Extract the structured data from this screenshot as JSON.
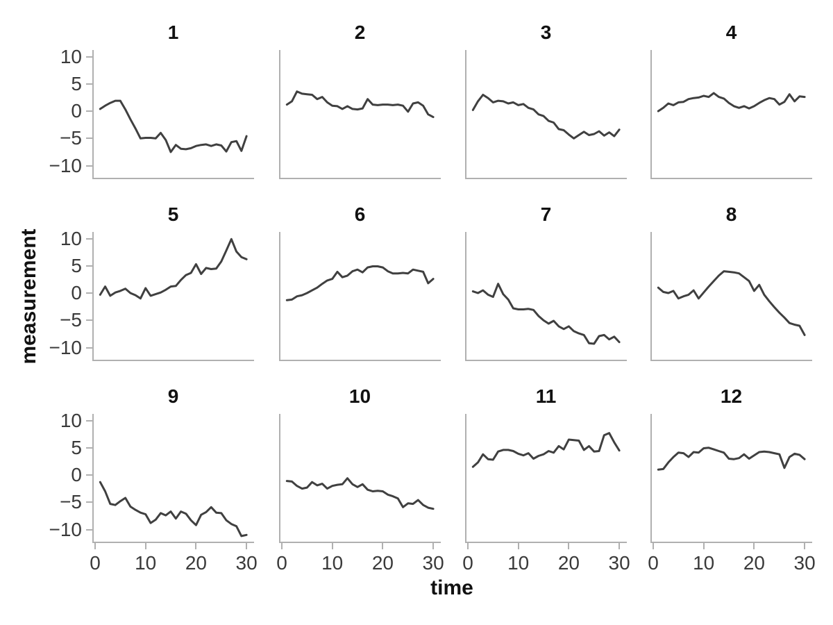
{
  "chart_data": {
    "type": "line",
    "layout": "facet-grid 3 rows x 4 cols, shared axes",
    "xlabel": "time",
    "ylabel": "measurement",
    "xlim": [
      -0.6,
      31.5
    ],
    "ylim": [
      -12.4,
      11.3
    ],
    "grid": "off",
    "legend": "none",
    "line_color": "#404040",
    "axis_color": "#b0b0b0",
    "x_ticks": [
      {
        "value": 0,
        "label": "0"
      },
      {
        "value": 10,
        "label": "10"
      },
      {
        "value": 20,
        "label": "20"
      },
      {
        "value": 30,
        "label": "30"
      }
    ],
    "y_ticks": [
      {
        "value": 10,
        "label": "10"
      },
      {
        "value": 5,
        "label": "5"
      },
      {
        "value": 0,
        "label": "0"
      },
      {
        "value": -5,
        "label": "−5"
      },
      {
        "value": -10,
        "label": "−10"
      }
    ],
    "x": [
      1,
      2,
      3,
      4,
      5,
      6,
      7,
      8,
      9,
      10,
      11,
      12,
      13,
      14,
      15,
      16,
      17,
      18,
      19,
      20,
      21,
      22,
      23,
      24,
      25,
      26,
      27,
      28,
      29,
      30
    ],
    "panels": [
      {
        "title": "1",
        "values": [
          0.4,
          1.0,
          1.5,
          1.9,
          1.9,
          0.3,
          -1.5,
          -3.2,
          -5.0,
          -4.9,
          -4.9,
          -5.0,
          -4.0,
          -5.3,
          -7.5,
          -6.2,
          -6.9,
          -7.0,
          -6.8,
          -6.4,
          -6.2,
          -6.1,
          -6.4,
          -6.1,
          -6.3,
          -7.4,
          -5.7,
          -5.5,
          -7.3,
          -4.6
        ]
      },
      {
        "title": "2",
        "values": [
          1.2,
          1.8,
          3.6,
          3.2,
          3.1,
          3.0,
          2.2,
          2.6,
          1.6,
          1.0,
          0.9,
          0.4,
          0.9,
          0.4,
          0.3,
          0.5,
          2.2,
          1.2,
          1.1,
          1.2,
          1.2,
          1.1,
          1.2,
          1.0,
          -0.1,
          1.4,
          1.6,
          1.0,
          -0.6,
          -1.1
        ]
      },
      {
        "title": "3",
        "values": [
          0.2,
          1.8,
          3.0,
          2.4,
          1.6,
          1.9,
          1.8,
          1.4,
          1.6,
          1.1,
          1.3,
          0.6,
          0.3,
          -0.6,
          -0.9,
          -1.8,
          -2.1,
          -3.3,
          -3.5,
          -4.3,
          -5.0,
          -4.4,
          -3.8,
          -4.4,
          -4.2,
          -3.7,
          -4.5,
          -3.9,
          -4.6,
          -3.4
        ]
      },
      {
        "title": "4",
        "values": [
          0.0,
          0.6,
          1.4,
          1.1,
          1.6,
          1.7,
          2.2,
          2.4,
          2.5,
          2.8,
          2.6,
          3.3,
          2.6,
          2.3,
          1.5,
          0.9,
          0.6,
          0.9,
          0.5,
          0.9,
          1.5,
          2.0,
          2.4,
          2.2,
          1.2,
          1.7,
          3.1,
          1.8,
          2.7,
          2.6
        ]
      },
      {
        "title": "5",
        "values": [
          -0.3,
          1.2,
          -0.5,
          0.1,
          0.4,
          0.8,
          0.0,
          -0.4,
          -1.0,
          0.9,
          -0.5,
          -0.2,
          0.1,
          0.6,
          1.2,
          1.3,
          2.4,
          3.3,
          3.7,
          5.3,
          3.5,
          4.6,
          4.4,
          4.5,
          5.8,
          7.8,
          9.9,
          7.6,
          6.6,
          6.2
        ]
      },
      {
        "title": "6",
        "values": [
          -1.3,
          -1.2,
          -0.6,
          -0.4,
          0.0,
          0.5,
          1.0,
          1.7,
          2.3,
          2.6,
          3.9,
          2.9,
          3.2,
          4.0,
          4.3,
          3.8,
          4.7,
          4.9,
          4.9,
          4.7,
          4.0,
          3.6,
          3.6,
          3.7,
          3.6,
          4.3,
          4.1,
          3.9,
          1.8,
          2.6
        ]
      },
      {
        "title": "7",
        "values": [
          0.3,
          0.0,
          0.5,
          -0.3,
          -0.7,
          1.7,
          -0.2,
          -1.2,
          -2.8,
          -3.0,
          -3.0,
          -2.9,
          -3.1,
          -4.2,
          -5.0,
          -5.6,
          -5.1,
          -6.1,
          -6.6,
          -6.1,
          -7.0,
          -7.4,
          -7.7,
          -9.2,
          -9.3,
          -7.9,
          -7.7,
          -8.5,
          -8.0,
          -9.0
        ]
      },
      {
        "title": "8",
        "values": [
          1.0,
          0.2,
          0.0,
          0.4,
          -1.0,
          -0.6,
          -0.3,
          0.5,
          -1.0,
          0.1,
          1.2,
          2.2,
          3.2,
          4.0,
          3.9,
          3.8,
          3.6,
          2.9,
          2.2,
          0.4,
          1.5,
          -0.3,
          -1.5,
          -2.6,
          -3.6,
          -4.5,
          -5.5,
          -5.8,
          -6.0,
          -7.7
        ]
      },
      {
        "title": "9",
        "values": [
          -1.3,
          -3.0,
          -5.3,
          -5.5,
          -4.8,
          -4.2,
          -5.8,
          -6.4,
          -6.9,
          -7.2,
          -8.8,
          -8.2,
          -7.0,
          -7.4,
          -6.7,
          -8.0,
          -6.7,
          -7.1,
          -8.3,
          -9.2,
          -7.3,
          -6.8,
          -5.9,
          -6.9,
          -7.0,
          -8.3,
          -9.0,
          -9.4,
          -11.2,
          -11.0
        ]
      },
      {
        "title": "10",
        "values": [
          -1.1,
          -1.2,
          -2.0,
          -2.5,
          -2.3,
          -1.3,
          -1.9,
          -1.6,
          -2.5,
          -2.0,
          -1.8,
          -1.7,
          -0.6,
          -1.7,
          -2.2,
          -1.7,
          -2.7,
          -3.0,
          -2.9,
          -3.0,
          -3.6,
          -3.9,
          -4.3,
          -5.9,
          -5.2,
          -5.3,
          -4.6,
          -5.5,
          -6.0,
          -6.2
        ]
      },
      {
        "title": "11",
        "values": [
          1.5,
          2.3,
          3.8,
          2.9,
          2.8,
          4.3,
          4.6,
          4.6,
          4.4,
          3.9,
          3.6,
          4.0,
          3.0,
          3.5,
          3.8,
          4.4,
          4.1,
          5.3,
          4.7,
          6.5,
          6.4,
          6.3,
          4.6,
          5.3,
          4.3,
          4.4,
          7.3,
          7.7,
          6.0,
          4.5
        ]
      },
      {
        "title": "12",
        "values": [
          1.0,
          1.1,
          2.3,
          3.3,
          4.1,
          4.0,
          3.3,
          4.2,
          4.1,
          4.9,
          5.0,
          4.7,
          4.4,
          4.1,
          3.0,
          2.9,
          3.1,
          3.8,
          3.0,
          3.6,
          4.2,
          4.3,
          4.2,
          4.0,
          3.8,
          1.3,
          3.3,
          3.9,
          3.7,
          2.9
        ]
      }
    ]
  }
}
